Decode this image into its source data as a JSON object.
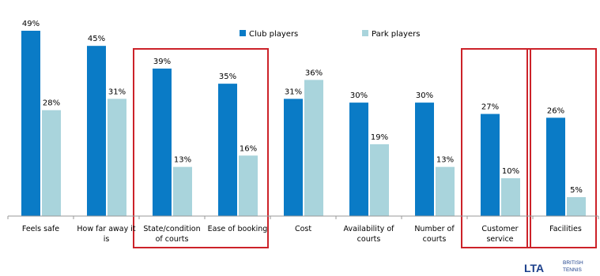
{
  "chart_data": {
    "type": "bar",
    "categories": [
      [
        "Feels safe"
      ],
      [
        "How far away it",
        "is"
      ],
      [
        "State/condition",
        "of courts"
      ],
      [
        "Ease of booking"
      ],
      [
        "Cost"
      ],
      [
        "Availability of",
        "courts"
      ],
      [
        "Number of",
        "courts"
      ],
      [
        "Customer",
        "service"
      ],
      [
        "Facilities"
      ]
    ],
    "series": [
      {
        "name": "Club players",
        "color": "#0a7bc6",
        "values": [
          49,
          45,
          39,
          35,
          31,
          30,
          30,
          27,
          26
        ]
      },
      {
        "name": "Park players",
        "color": "#a9d4dc",
        "values": [
          28,
          31,
          13,
          16,
          36,
          19,
          13,
          10,
          5
        ]
      }
    ],
    "value_suffix": "%",
    "ylim": [
      0,
      49
    ],
    "grid": false,
    "legend_position": "top-center",
    "highlight_boxes": [
      [
        2,
        3
      ],
      [
        7,
        7
      ],
      [
        8,
        8
      ]
    ],
    "highlight_color": "#cc2229"
  },
  "logo": {
    "text": "LTA",
    "subtext": [
      "BRITISH",
      "TENNIS"
    ]
  }
}
